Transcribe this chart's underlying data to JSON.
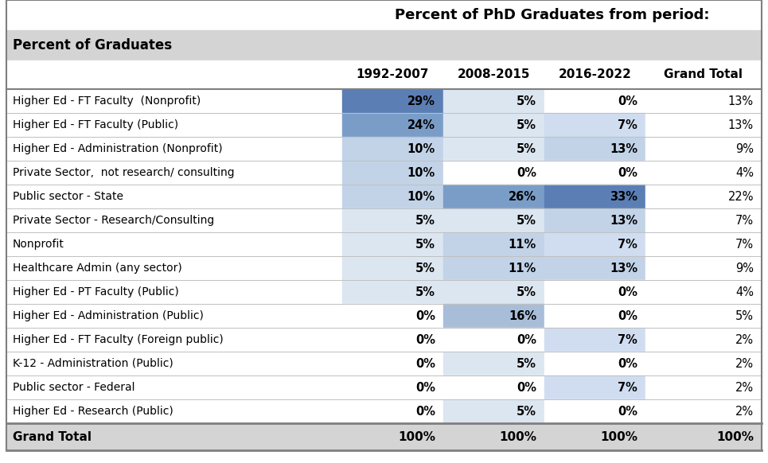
{
  "title": "Percent of PhD Graduates from period:",
  "header_left": "Percent of Graduates",
  "columns": [
    "1992-2007",
    "2008-2015",
    "2016-2022",
    "Grand Total"
  ],
  "rows": [
    {
      "label": "Higher Ed - FT Faculty  (Nonprofit)",
      "vals": [
        29,
        5,
        0,
        13
      ]
    },
    {
      "label": "Higher Ed - FT Faculty (Public)",
      "vals": [
        24,
        5,
        7,
        13
      ]
    },
    {
      "label": "Higher Ed - Administration (Nonprofit)",
      "vals": [
        10,
        5,
        13,
        9
      ]
    },
    {
      "label": "Private Sector,  not research/ consulting",
      "vals": [
        10,
        0,
        0,
        4
      ]
    },
    {
      "label": "Public sector - State",
      "vals": [
        10,
        26,
        33,
        22
      ]
    },
    {
      "label": "Private Sector - Research/Consulting",
      "vals": [
        5,
        5,
        13,
        7
      ]
    },
    {
      "label": "Nonprofit",
      "vals": [
        5,
        11,
        7,
        7
      ]
    },
    {
      "label": "Healthcare Admin (any sector)",
      "vals": [
        5,
        11,
        13,
        9
      ]
    },
    {
      "label": "Higher Ed - PT Faculty (Public)",
      "vals": [
        5,
        5,
        0,
        4
      ]
    },
    {
      "label": "Higher Ed - Administration (Public)",
      "vals": [
        0,
        16,
        0,
        5
      ]
    },
    {
      "label": "Higher Ed - FT Faculty (Foreign public)",
      "vals": [
        0,
        0,
        7,
        2
      ]
    },
    {
      "label": "K-12 - Administration (Public)",
      "vals": [
        0,
        5,
        0,
        2
      ]
    },
    {
      "label": "Public sector - Federal",
      "vals": [
        0,
        0,
        7,
        2
      ]
    },
    {
      "label": "Higher Ed - Research (Public)",
      "vals": [
        0,
        5,
        0,
        2
      ]
    }
  ],
  "footer": {
    "label": "Grand Total",
    "vals": [
      100,
      100,
      100,
      100
    ]
  },
  "bg_color": "#ffffff",
  "header_bg": "#d4d4d4",
  "footer_bg": "#d4d4d4",
  "border_color": "#7f7f7f",
  "row_sep_color": "#c0c0c0",
  "cell_colors": {
    "c29": "#5b7fb5",
    "c24": "#7a9dc8",
    "c33": "#5b7fb5",
    "c26": "#7a9dc8",
    "c16": "#a8bdd8",
    "c13": "#c2d3e8",
    "c11": "#c2d3e8",
    "c10": "#d0ddf0",
    "c7": "#d8e4f0",
    "c5": "#dce6f1",
    "c0": "#ffffff"
  },
  "thresholds": [
    28,
    22,
    14,
    9,
    6,
    2
  ],
  "colors_by_thresh": [
    "#5b7fb5",
    "#7a9dc8",
    "#a8bdd8",
    "#c2d3e8",
    "#d0ddf0",
    "#dce6f1",
    "#ffffff"
  ]
}
